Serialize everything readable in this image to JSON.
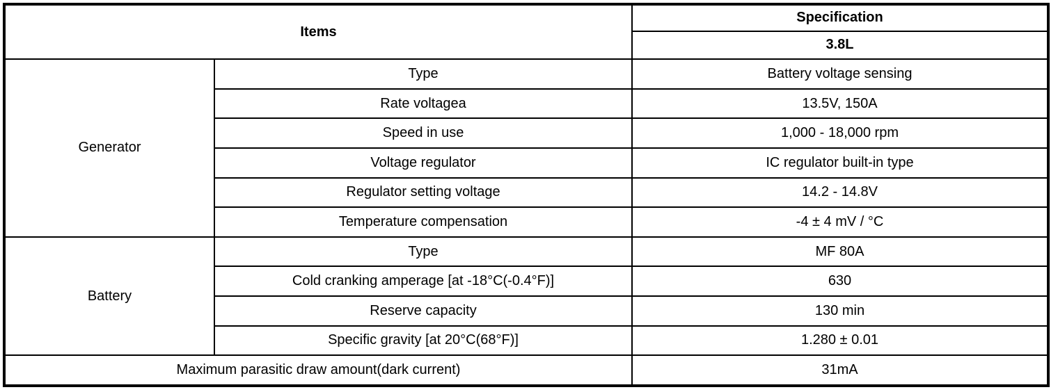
{
  "header": {
    "items": "Items",
    "specification": "Specification",
    "engine": "3.8L"
  },
  "generator": {
    "label": "Generator",
    "rows": [
      {
        "item": "Type",
        "spec": "Battery voltage sensing"
      },
      {
        "item": "Rate voltagea",
        "spec": "13.5V, 150A"
      },
      {
        "item": "Speed in use",
        "spec": "1,000 - 18,000 rpm"
      },
      {
        "item": "Voltage regulator",
        "spec": "IC regulator built-in type"
      },
      {
        "item": "Regulator setting voltage",
        "spec": "14.2 - 14.8V"
      },
      {
        "item": "Temperature compensation",
        "spec": "-4 ± 4 mV / °C"
      }
    ]
  },
  "battery": {
    "label": "Battery",
    "rows": [
      {
        "item": "Type",
        "spec": "MF 80A"
      },
      {
        "item": "Cold cranking amperage [at -18°C(-0.4°F)]",
        "spec": "630"
      },
      {
        "item": "Reserve capacity",
        "spec": "130 min"
      },
      {
        "item": "Specific gravity [at 20°C(68°F)]",
        "spec": "1.280 ± 0.01"
      }
    ]
  },
  "parasitic": {
    "item": "Maximum parasitic draw amount(dark current)",
    "spec": "31mA"
  }
}
